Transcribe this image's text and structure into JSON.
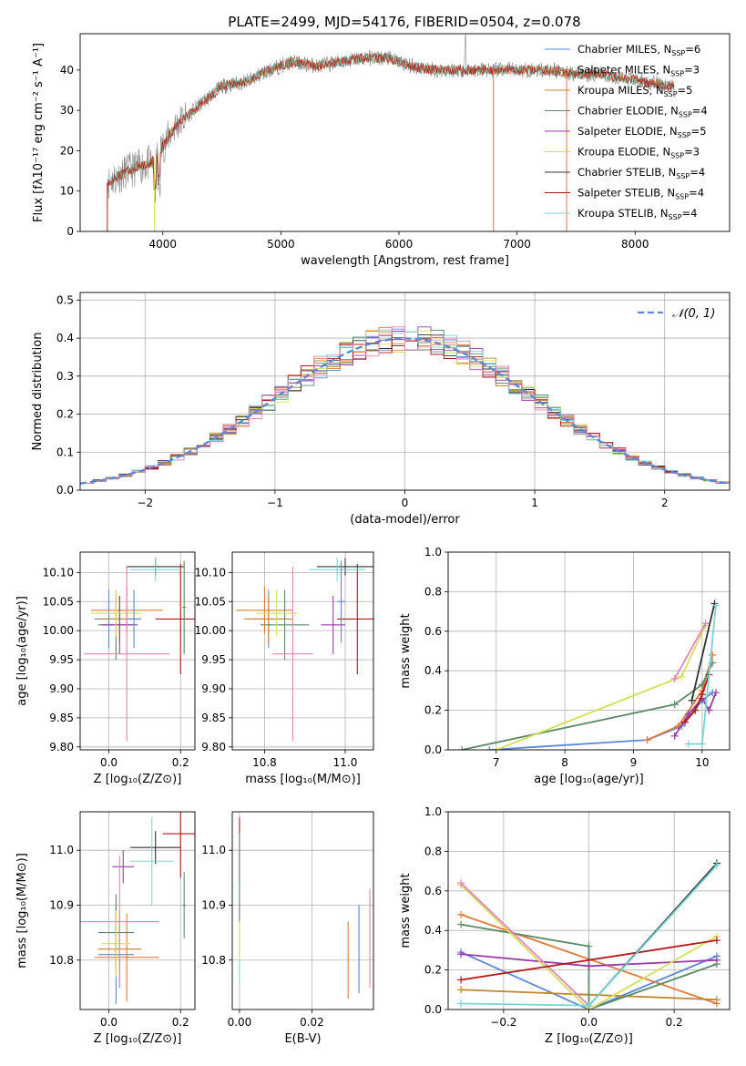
{
  "figure": {
    "title": "PLATE=2499, MJD=54176, FIBERID=0504, z=0.078"
  },
  "colors": {
    "chabrier_miles": "#5b86d8",
    "salpeter_miles": "#e07b39",
    "kroupa_miles": "#c2842b",
    "chabrier_elodie": "#5b8a66",
    "salpeter_elodie": "#9a3aa6",
    "kroupa_elodie": "#d6de5a",
    "chabrier_stelib": "#333333",
    "salpeter_stelib": "#b3191c",
    "kroupa_stelib": "#77d5d4",
    "pink": "#e384b8",
    "grid": "#b0b0b0"
  },
  "chart_data": [
    {
      "id": "spectrum",
      "type": "line",
      "xlabel": "wavelength [Angstrom, rest frame]",
      "ylabel": "Flux [fλ10⁻¹⁷ erg cm⁻² s⁻¹ A⁻¹]",
      "xlim": [
        3300,
        8800
      ],
      "ylim": [
        0,
        49
      ],
      "xticks": [
        "4000",
        "5000",
        "6000",
        "7000",
        "8000"
      ],
      "yticks": [
        "0",
        "10",
        "20",
        "30",
        "40"
      ],
      "grid": false,
      "legend_position": "right",
      "legend": [
        {
          "label": "Chabrier MILES, N",
          "sub": "SSP",
          "tail": "=6"
        },
        {
          "label": "Salpeter MILES, N",
          "sub": "SSP",
          "tail": "=3"
        },
        {
          "label": "Kroupa MILES, N",
          "sub": "SSP",
          "tail": "=5"
        },
        {
          "label": "Chabrier ELODIE, N",
          "sub": "SSP",
          "tail": "=4"
        },
        {
          "label": "Salpeter ELODIE, N",
          "sub": "SSP",
          "tail": "=5"
        },
        {
          "label": "Kroupa ELODIE, N",
          "sub": "SSP",
          "tail": "=3"
        },
        {
          "label": "Chabrier STELIB, N",
          "sub": "SSP",
          "tail": "=4"
        },
        {
          "label": "Salpeter STELIB, N",
          "sub": "SSP",
          "tail": "=4"
        },
        {
          "label": "Kroupa STELIB, N",
          "sub": "SSP",
          "tail": "=4"
        }
      ],
      "continuum": {
        "x": [
          3530,
          3700,
          3900,
          4000,
          4100,
          4300,
          4500,
          4700,
          4900,
          5100,
          5300,
          5500,
          5700,
          5900,
          6100,
          6300,
          6500,
          6700,
          6900,
          7100,
          7300,
          7500,
          7700,
          7900,
          8100,
          8300
        ],
        "y": [
          12,
          15,
          17,
          21,
          26,
          31,
          36,
          37,
          40,
          42,
          41,
          42,
          43,
          43,
          41,
          40,
          40,
          40,
          40,
          40,
          40,
          39,
          39,
          38,
          37,
          36
        ]
      }
    },
    {
      "id": "residuals",
      "type": "histogram",
      "xlabel": "(data-model)/error",
      "ylabel": "Normed distribution",
      "xlim": [
        -2.5,
        2.5
      ],
      "ylim": [
        0,
        0.52
      ],
      "xticks": [
        "−2",
        "−1",
        "0",
        "1",
        "2"
      ],
      "yticks": [
        "0.0",
        "0.1",
        "0.2",
        "0.3",
        "0.4",
        "0.5"
      ],
      "grid": true,
      "legend_position": "top-right",
      "legend_label": "𝒩(0, 1)",
      "bin_width": 0.1,
      "gaussian": {
        "mean": 0,
        "sigma": 1
      }
    },
    {
      "id": "age-vs-z",
      "type": "errorbar",
      "xlabel": "Z [log₁₀(Z/Z⊙)]",
      "ylabel": "age  [log₁₀(age/yr)]",
      "xlim": [
        -0.08,
        0.24
      ],
      "ylim": [
        9.795,
        10.135
      ],
      "xticks": [
        "0.0",
        "0.2"
      ],
      "yticks": [
        "9.80",
        "9.85",
        "9.90",
        "9.95",
        "10.00",
        "10.05",
        "10.10"
      ],
      "grid": true,
      "points": [
        {
          "x": 0.0,
          "xerr": 0.04,
          "y": 10.02,
          "yerr": 0.05,
          "color": "chabrier_miles"
        },
        {
          "x": 0.05,
          "xerr": 0.1,
          "y": 10.035,
          "yerr": 0.04,
          "color": "salpeter_miles"
        },
        {
          "x": 0.03,
          "xerr": 0.06,
          "y": 10.02,
          "yerr": 0.04,
          "color": "kroupa_miles"
        },
        {
          "x": 0.02,
          "xerr": 0.05,
          "y": 10.01,
          "yerr": 0.06,
          "color": "chabrier_elodie"
        },
        {
          "x": 0.03,
          "xerr": 0.05,
          "y": 10.01,
          "yerr": 0.05,
          "color": "salpeter_elodie"
        },
        {
          "x": 0.02,
          "xerr": 0.07,
          "y": 10.03,
          "yerr": 0.04,
          "color": "kroupa_elodie"
        },
        {
          "x": 0.13,
          "xerr": 0.08,
          "y": 10.11,
          "yerr": 0.015,
          "color": "chabrier_stelib"
        },
        {
          "x": 0.2,
          "xerr": 0.07,
          "y": 10.02,
          "yerr": 0.095,
          "color": "salpeter_stelib"
        },
        {
          "x": 0.13,
          "xerr": 0.07,
          "y": 10.105,
          "yerr": 0.02,
          "color": "kroupa_stelib"
        },
        {
          "x": 0.05,
          "xerr": 0.12,
          "y": 9.96,
          "yerr": 0.15,
          "color": "pink"
        },
        {
          "x": 0.07,
          "xerr": 0.02,
          "y": 10.02,
          "yerr": 0.05,
          "color": "chabrier_miles"
        },
        {
          "x": 0.21,
          "xerr": 0.005,
          "y": 10.04,
          "yerr": 0.08,
          "color": "chabrier_elodie"
        }
      ]
    },
    {
      "id": "age-vs-mass",
      "type": "errorbar",
      "xlabel": "mass [log₁₀(M/M⊙)]",
      "ylabel": "",
      "xlim": [
        10.72,
        11.07
      ],
      "ylim": [
        9.795,
        10.135
      ],
      "xticks": [
        "10.8",
        "11.0"
      ],
      "yticks": [
        "9.80",
        "9.85",
        "9.90",
        "9.95",
        "10.00",
        "10.05",
        "10.10"
      ],
      "grid": true,
      "points": [
        {
          "x": 10.81,
          "xerr": 0.05,
          "y": 10.02,
          "yerr": 0.05,
          "color": "chabrier_miles"
        },
        {
          "x": 10.8,
          "xerr": 0.07,
          "y": 10.035,
          "yerr": 0.04,
          "color": "salpeter_miles"
        },
        {
          "x": 10.81,
          "xerr": 0.06,
          "y": 10.02,
          "yerr": 0.04,
          "color": "kroupa_miles"
        },
        {
          "x": 10.85,
          "xerr": 0.06,
          "y": 10.01,
          "yerr": 0.06,
          "color": "chabrier_elodie"
        },
        {
          "x": 10.97,
          "xerr": 0.03,
          "y": 10.01,
          "yerr": 0.05,
          "color": "salpeter_elodie"
        },
        {
          "x": 10.83,
          "xerr": 0.05,
          "y": 10.03,
          "yerr": 0.04,
          "color": "kroupa_elodie"
        },
        {
          "x": 11.0,
          "xerr": 0.07,
          "y": 10.11,
          "yerr": 0.015,
          "color": "chabrier_stelib"
        },
        {
          "x": 11.03,
          "xerr": 0.05,
          "y": 10.02,
          "yerr": 0.095,
          "color": "salpeter_stelib"
        },
        {
          "x": 10.98,
          "xerr": 0.07,
          "y": 10.105,
          "yerr": 0.02,
          "color": "kroupa_stelib"
        },
        {
          "x": 10.87,
          "xerr": 0.05,
          "y": 9.96,
          "yerr": 0.15,
          "color": "pink"
        },
        {
          "x": 10.99,
          "xerr": 0.01,
          "y": 10.05,
          "yerr": 0.07,
          "color": "chabrier_miles"
        }
      ]
    },
    {
      "id": "weight-vs-age",
      "type": "line",
      "xlabel": "age  [log₁₀(age/yr)]",
      "ylabel": "mass weight",
      "xlim": [
        6.3,
        10.4
      ],
      "ylim": [
        0,
        1
      ],
      "xticks": [
        "7",
        "8",
        "9",
        "10"
      ],
      "yticks": [
        "0.0",
        "0.2",
        "0.4",
        "0.6",
        "0.8",
        "1.0"
      ],
      "grid": true,
      "series": [
        {
          "color": "chabrier_miles",
          "x": [
            6.9,
            9.2,
            9.7,
            10.0,
            10.15
          ],
          "y": [
            0.0,
            0.05,
            0.12,
            0.25,
            0.29
          ]
        },
        {
          "color": "salpeter_miles",
          "x": [
            9.2,
            9.65,
            10.0,
            10.15
          ],
          "y": [
            0.05,
            0.12,
            0.3,
            0.48
          ]
        },
        {
          "color": "chabrier_elodie",
          "x": [
            6.5,
            9.6,
            10.0,
            10.15
          ],
          "y": [
            0.0,
            0.23,
            0.33,
            0.44
          ]
        },
        {
          "color": "salpeter_elodie",
          "x": [
            9.6,
            9.8,
            10.0,
            10.1,
            10.2
          ],
          "y": [
            0.07,
            0.18,
            0.26,
            0.2,
            0.29
          ]
        },
        {
          "color": "kroupa_elodie",
          "x": [
            7.0,
            9.7,
            10.05
          ],
          "y": [
            0.0,
            0.37,
            0.63
          ]
        },
        {
          "color": "pink",
          "x": [
            9.6,
            10.05
          ],
          "y": [
            0.36,
            0.64
          ]
        },
        {
          "color": "chabrier_stelib",
          "x": [
            9.85,
            10.18
          ],
          "y": [
            0.25,
            0.74
          ]
        },
        {
          "color": "salpeter_stelib",
          "x": [
            9.75,
            9.9,
            10.0,
            10.1
          ],
          "y": [
            0.14,
            0.2,
            0.28,
            0.38
          ]
        },
        {
          "color": "kroupa_stelib",
          "x": [
            9.8,
            10.0,
            10.2
          ],
          "y": [
            0.03,
            0.03,
            0.73
          ]
        }
      ]
    },
    {
      "id": "mass-vs-z",
      "type": "errorbar",
      "xlabel": "Z [log₁₀(Z/Z⊙)]",
      "ylabel": "mass [log₁₀(M/M⊙)]",
      "xlim": [
        -0.08,
        0.24
      ],
      "ylim": [
        10.71,
        11.07
      ],
      "xticks": [
        "0.0",
        "0.2"
      ],
      "yticks": [
        "10.8",
        "10.9",
        "11.0"
      ],
      "grid": true,
      "points": [
        {
          "x": 0.02,
          "xerr": 0.05,
          "y": 10.81,
          "yerr": 0.09,
          "color": "chabrier_miles"
        },
        {
          "x": 0.05,
          "xerr": 0.09,
          "y": 10.805,
          "yerr": 0.08,
          "color": "salpeter_miles"
        },
        {
          "x": 0.03,
          "xerr": 0.06,
          "y": 10.82,
          "yerr": 0.07,
          "color": "kroupa_miles"
        },
        {
          "x": 0.02,
          "xerr": 0.05,
          "y": 10.85,
          "yerr": 0.07,
          "color": "chabrier_elodie"
        },
        {
          "x": 0.04,
          "xerr": 0.03,
          "y": 10.97,
          "yerr": 0.03,
          "color": "salpeter_elodie"
        },
        {
          "x": 0.02,
          "xerr": 0.04,
          "y": 10.83,
          "yerr": 0.06,
          "color": "kroupa_elodie"
        },
        {
          "x": 0.13,
          "xerr": 0.07,
          "y": 11.005,
          "yerr": 0.03,
          "color": "chabrier_stelib"
        },
        {
          "x": 0.2,
          "xerr": 0.05,
          "y": 11.03,
          "yerr": 0.08,
          "color": "salpeter_stelib"
        },
        {
          "x": 0.12,
          "xerr": 0.06,
          "y": 10.98,
          "yerr": 0.08,
          "color": "kroupa_stelib"
        },
        {
          "x": 0.03,
          "xerr": 0.11,
          "y": 10.87,
          "yerr": 0.12,
          "color": "pink"
        },
        {
          "x": 0.21,
          "xerr": 0.005,
          "y": 10.9,
          "yerr": 0.06,
          "color": "chabrier_elodie"
        }
      ]
    },
    {
      "id": "mass-vs-ebv",
      "type": "errorbar",
      "xlabel": "E(B-V)",
      "ylabel": "",
      "xlim": [
        -0.002,
        0.037
      ],
      "ylim": [
        10.71,
        11.07
      ],
      "xticks": [
        "0.00",
        "0.02"
      ],
      "yticks": [
        "10.8",
        "10.9",
        "11.0"
      ],
      "grid": true,
      "points": [
        {
          "x": 0.0,
          "xerr": 0,
          "y": 11.0,
          "yerr": 0.06,
          "color": "salpeter_stelib"
        },
        {
          "x": 0.0,
          "xerr": 0,
          "y": 10.88,
          "yerr": 0.12,
          "color": "kroupa_stelib"
        },
        {
          "x": 0.0,
          "xerr": 0,
          "y": 10.85,
          "yerr": 0.05,
          "color": "kroupa_elodie"
        },
        {
          "x": 0.0,
          "xerr": 0,
          "y": 10.95,
          "yerr": 0.08,
          "color": "chabrier_elodie"
        },
        {
          "x": 0.03,
          "xerr": 0,
          "y": 10.8,
          "yerr": 0.07,
          "color": "salpeter_miles"
        },
        {
          "x": 0.033,
          "xerr": 0,
          "y": 10.82,
          "yerr": 0.08,
          "color": "chabrier_miles"
        },
        {
          "x": 0.036,
          "xerr": 0,
          "y": 10.84,
          "yerr": 0.09,
          "color": "pink"
        }
      ]
    },
    {
      "id": "weight-vs-z",
      "type": "line",
      "xlabel": "Z [log₁₀(Z/Z⊙)]",
      "ylabel": "mass weight",
      "xlim": [
        -0.33,
        0.33
      ],
      "ylim": [
        0,
        1
      ],
      "xticks": [
        "−0.2",
        "0.0",
        "0.2"
      ],
      "yticks": [
        "0.0",
        "0.2",
        "0.4",
        "0.6",
        "0.8",
        "1.0"
      ],
      "grid": true,
      "series": [
        {
          "color": "chabrier_miles",
          "x": [
            -0.3,
            0.0,
            0.3
          ],
          "y": [
            0.29,
            0.0,
            0.27
          ]
        },
        {
          "color": "salpeter_miles",
          "x": [
            -0.3,
            0.3
          ],
          "y": [
            0.48,
            0.03
          ]
        },
        {
          "color": "kroupa_miles",
          "x": [
            -0.3,
            0.3
          ],
          "y": [
            0.1,
            0.05
          ]
        },
        {
          "color": "chabrier_elodie",
          "x": [
            -0.3,
            0.0,
            0.0,
            0.3
          ],
          "y": [
            0.43,
            0.32,
            0.0,
            0.23
          ]
        },
        {
          "color": "salpeter_elodie",
          "x": [
            -0.3,
            0.0,
            0.3
          ],
          "y": [
            0.28,
            0.22,
            0.25
          ]
        },
        {
          "color": "kroupa_elodie",
          "x": [
            -0.3,
            0.0,
            0.3
          ],
          "y": [
            0.63,
            0.0,
            0.37
          ]
        },
        {
          "color": "pink",
          "x": [
            -0.3,
            0.0
          ],
          "y": [
            0.64,
            0.02
          ]
        },
        {
          "color": "chabrier_stelib",
          "x": [
            0.0,
            0.3
          ],
          "y": [
            0.02,
            0.74
          ]
        },
        {
          "color": "salpeter_stelib",
          "x": [
            -0.3,
            0.3
          ],
          "y": [
            0.15,
            0.35
          ]
        },
        {
          "color": "kroupa_stelib",
          "x": [
            -0.3,
            0.0,
            0.3
          ],
          "y": [
            0.03,
            0.02,
            0.73
          ]
        }
      ]
    }
  ]
}
